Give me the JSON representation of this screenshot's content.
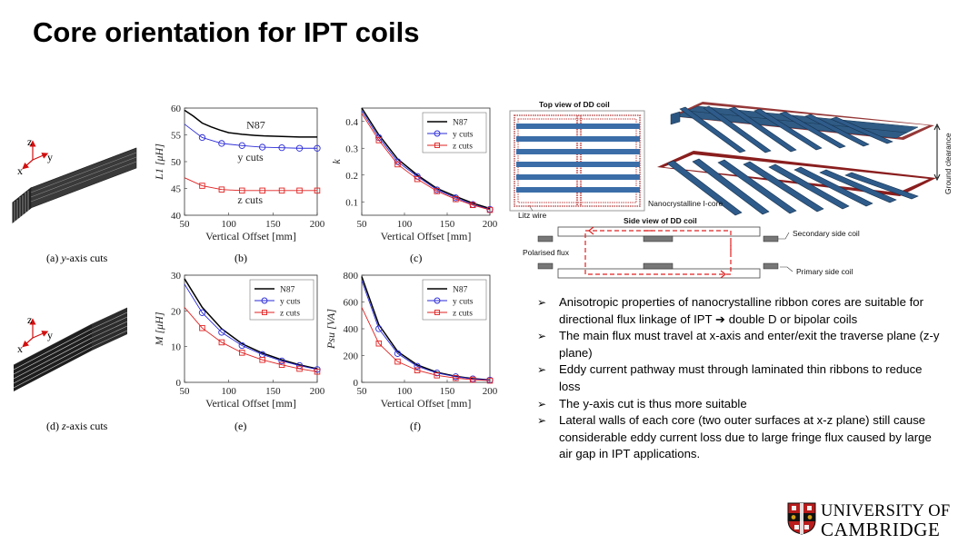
{
  "slide": {
    "title": "Core orientation for IPT coils"
  },
  "cores": {
    "a_caption": "(a) y-axis cuts",
    "a_caption_prefix": "(a) ",
    "a_caption_italic": "y",
    "a_caption_suffix": "-axis cuts",
    "d_caption_prefix": "(d) ",
    "d_caption_italic": "z",
    "d_caption_suffix": "-axis cuts",
    "axis_z": "z",
    "axis_y": "y",
    "axis_x": "x"
  },
  "plots": {
    "b_caption": "(b)",
    "c_caption": "(c)",
    "e_caption": "(e)",
    "f_caption": "(f)"
  },
  "diagram": {
    "top_view_label": "Top view of DD coil",
    "litz_wire_label": "Litz wire",
    "side_view_label": "Side view of DD coil",
    "polarised_flux_label": "Polarised flux",
    "core_label": "Nanocrystalline I-core",
    "secondary_label": "Secondary side coil",
    "primary_label": "Primary side coil",
    "ground_clearance_label": "Ground clearance"
  },
  "bullets": [
    "Anisotropic properties of nanocrystalline ribbon cores are suitable for directional flux linkage of IPT ➔ double D or bipolar coils",
    "The main flux must travel at x-axis and enter/exit the traverse plane (z-y plane)",
    "Eddy current pathway must through laminated thin ribbons to reduce loss",
    "The y-axis cut is thus more suitable",
    "Lateral walls of each core (two outer surfaces at x-z plane) still cause considerable eddy current loss due to large fringe flux caused by large air gap in IPT applications."
  ],
  "logo": {
    "line1": "UNIVERSITY OF",
    "line2": "CAMBRIDGE"
  },
  "colors": {
    "n87": "#000000",
    "y_cuts": "#2a2ad8",
    "z_cuts": "#e02020",
    "coil_blue": "#2e5b8a",
    "litz_red": "#b22222"
  },
  "chart_data": [
    {
      "id": "b",
      "type": "line",
      "xlabel": "Vertical Offset [mm]",
      "ylabel": "L1 [μH]",
      "xlim": [
        50,
        200
      ],
      "ylim": [
        40,
        60
      ],
      "xticks": [
        "50",
        "100",
        "150",
        "200"
      ],
      "yticks": [
        "40",
        "45",
        "50",
        "55",
        "60"
      ],
      "annotations": [
        "N87",
        "y cuts",
        "z cuts"
      ],
      "series": [
        {
          "name": "N87",
          "marker": "none",
          "x": [
            50,
            60,
            70,
            80,
            90,
            100,
            115,
            130,
            140,
            160,
            180,
            200
          ],
          "y": [
            59.6,
            58.5,
            57.2,
            56.5,
            55.9,
            55.4,
            55.1,
            54.9,
            54.8,
            54.7,
            54.6,
            54.6
          ]
        },
        {
          "name": "y cuts",
          "marker": "circle",
          "x": [
            50,
            70,
            92,
            115,
            138,
            160,
            180,
            200
          ],
          "y": [
            57,
            54.5,
            53.4,
            53.0,
            52.7,
            52.6,
            52.5,
            52.5
          ]
        },
        {
          "name": "z cuts",
          "marker": "square",
          "x": [
            50,
            70,
            92,
            115,
            138,
            160,
            180,
            200
          ],
          "y": [
            47,
            45.5,
            44.8,
            44.6,
            44.6,
            44.6,
            44.6,
            44.6
          ]
        }
      ]
    },
    {
      "id": "c",
      "type": "line",
      "xlabel": "Vertical Offset [mm]",
      "ylabel": "k",
      "xlim": [
        50,
        200
      ],
      "ylim": [
        0.05,
        0.45
      ],
      "xticks": [
        "50",
        "100",
        "150",
        "200"
      ],
      "yticks": [
        "0.1",
        "0.2",
        "0.3",
        "0.4"
      ],
      "legend": "top-right",
      "series": [
        {
          "name": "N87",
          "marker": "none",
          "x": [
            50,
            70,
            92,
            115,
            138,
            160,
            180,
            200
          ],
          "y": [
            0.45,
            0.35,
            0.26,
            0.2,
            0.15,
            0.12,
            0.095,
            0.075
          ]
        },
        {
          "name": "y cuts",
          "marker": "circle",
          "x": [
            50,
            70,
            92,
            115,
            138,
            160,
            180,
            200
          ],
          "y": [
            0.44,
            0.34,
            0.25,
            0.195,
            0.145,
            0.115,
            0.09,
            0.072
          ]
        },
        {
          "name": "z cuts",
          "marker": "square",
          "x": [
            50,
            70,
            92,
            115,
            138,
            160,
            180,
            200
          ],
          "y": [
            0.43,
            0.33,
            0.24,
            0.185,
            0.14,
            0.11,
            0.088,
            0.07
          ]
        }
      ]
    },
    {
      "id": "e",
      "type": "line",
      "xlabel": "Vertical Offset [mm]",
      "ylabel": "M [μH]",
      "xlim": [
        50,
        200
      ],
      "ylim": [
        0,
        30
      ],
      "xticks": [
        "50",
        "100",
        "150",
        "200"
      ],
      "yticks": [
        "0",
        "10",
        "20",
        "30"
      ],
      "legend": "top-right",
      "series": [
        {
          "name": "N87",
          "marker": "none",
          "x": [
            50,
            70,
            92,
            115,
            138,
            160,
            180,
            200
          ],
          "y": [
            29,
            21,
            15,
            10.8,
            8.2,
            6.3,
            4.9,
            3.8
          ]
        },
        {
          "name": "y cuts",
          "marker": "circle",
          "x": [
            50,
            70,
            92,
            115,
            138,
            160,
            180,
            200
          ],
          "y": [
            27.5,
            19.5,
            14,
            10.3,
            7.8,
            6.0,
            4.7,
            3.6
          ]
        },
        {
          "name": "z cuts",
          "marker": "square",
          "x": [
            50,
            70,
            92,
            115,
            138,
            160,
            180,
            200
          ],
          "y": [
            21,
            15.2,
            11.2,
            8.3,
            6.3,
            4.9,
            3.8,
            3.0
          ]
        }
      ]
    },
    {
      "id": "f",
      "type": "line",
      "xlabel": "Vertical Offset [mm]",
      "ylabel": "Psu [VA]",
      "xlim": [
        50,
        200
      ],
      "ylim": [
        0,
        800
      ],
      "xticks": [
        "50",
        "100",
        "150",
        "200"
      ],
      "yticks": [
        "0",
        "200",
        "400",
        "600",
        "800"
      ],
      "legend": "top-right",
      "series": [
        {
          "name": "N87",
          "marker": "none",
          "x": [
            50,
            70,
            92,
            115,
            138,
            160,
            180,
            200
          ],
          "y": [
            790,
            430,
            230,
            130,
            75,
            45,
            28,
            18
          ]
        },
        {
          "name": "y cuts",
          "marker": "circle",
          "x": [
            50,
            70,
            92,
            115,
            138,
            160,
            180,
            200
          ],
          "y": [
            760,
            400,
            215,
            120,
            70,
            42,
            26,
            17
          ]
        },
        {
          "name": "z cuts",
          "marker": "square",
          "x": [
            50,
            70,
            92,
            115,
            138,
            160,
            180,
            200
          ],
          "y": [
            560,
            290,
            155,
            90,
            52,
            32,
            20,
            13
          ]
        }
      ]
    }
  ]
}
